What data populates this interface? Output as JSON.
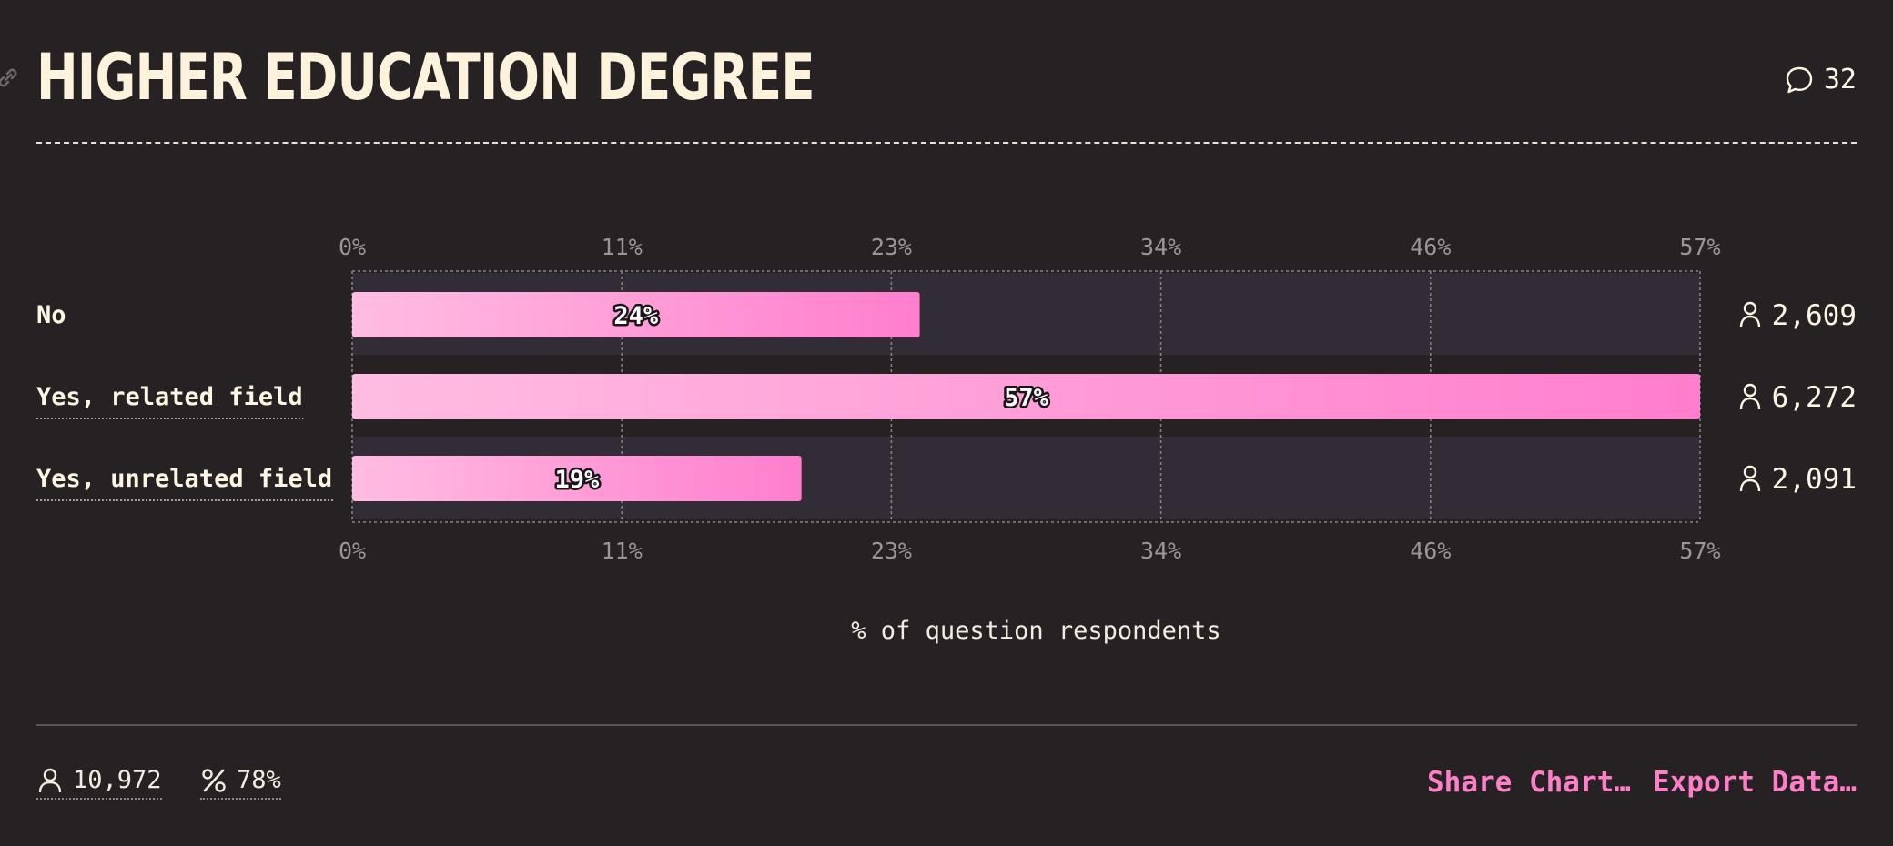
{
  "header": {
    "title": "HIGHER EDUCATION DEGREE",
    "comment_count": "32"
  },
  "colors": {
    "background": "#262224",
    "track": "#322c36",
    "bar_start": "#ffbde2",
    "bar_end": "#ff7ecd",
    "accent_link": "#ff7ec8"
  },
  "chart_data": {
    "type": "bar",
    "orientation": "horizontal",
    "categories": [
      "No",
      "Yes, related field",
      "Yes, unrelated field"
    ],
    "values": [
      24,
      57,
      19
    ],
    "value_labels": [
      "24%",
      "57%",
      "19%"
    ],
    "respondents": [
      "2,609",
      "6,272",
      "2,091"
    ],
    "xlim": [
      0,
      57
    ],
    "xticks": [
      "0%",
      "11%",
      "23%",
      "34%",
      "46%",
      "57%"
    ],
    "xtick_values": [
      0,
      11.4,
      22.8,
      34.2,
      45.6,
      57
    ],
    "xlabel": "% of question respondents",
    "grid": true
  },
  "footer": {
    "total_respondents": "10,972",
    "response_rate": "78%",
    "share_label": "Share Chart…",
    "export_label": "Export Data…"
  }
}
